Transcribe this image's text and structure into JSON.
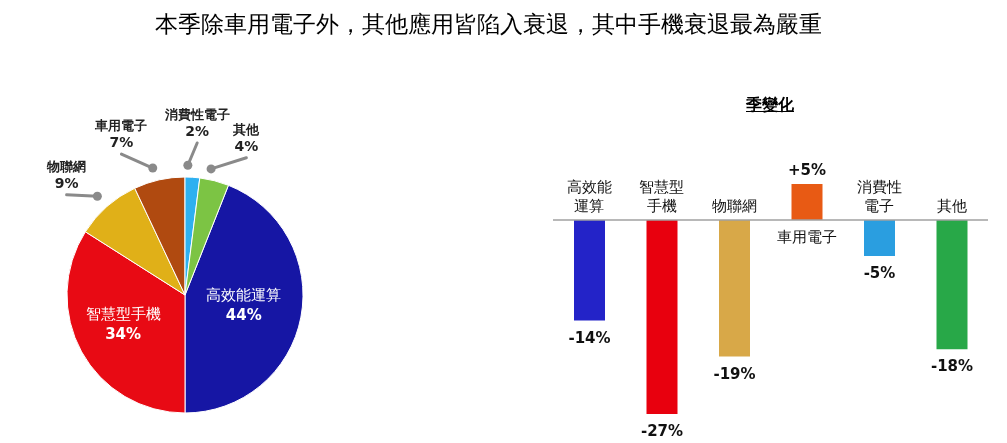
{
  "chart_data": [
    {
      "type": "pie",
      "categories": [
        "高效能運算",
        "智慧型手機",
        "物聯網",
        "車用電子",
        "消費性電子",
        "其他"
      ],
      "values": [
        44,
        34,
        9,
        7,
        2,
        4
      ],
      "value_labels": [
        "44%",
        "34%",
        "9%",
        "7%",
        "2%",
        "4%"
      ],
      "colors": [
        "#1616a4",
        "#e80a14",
        "#e0b018",
        "#b04a10",
        "#2eb0f0",
        "#7cc444"
      ]
    },
    {
      "type": "bar",
      "title": "本季除車用電子外，其他應用皆陷入衰退，其中手機衰退最為嚴重",
      "subtitle": "季變化",
      "categories": [
        "高效能運算",
        "智慧型手機",
        "物聯網",
        "車用電子",
        "消費性電子",
        "其他"
      ],
      "values": [
        -14,
        -27,
        -19,
        5,
        -5,
        -18
      ],
      "value_labels": [
        "-14%",
        "-27%",
        "-19%",
        "+5%",
        "-5%",
        "-18%"
      ],
      "colors": [
        "#2323c8",
        "#e8000e",
        "#d8a848",
        "#e85a14",
        "#2a9ee0",
        "#28a848"
      ],
      "tick_labels": "x"
    }
  ]
}
